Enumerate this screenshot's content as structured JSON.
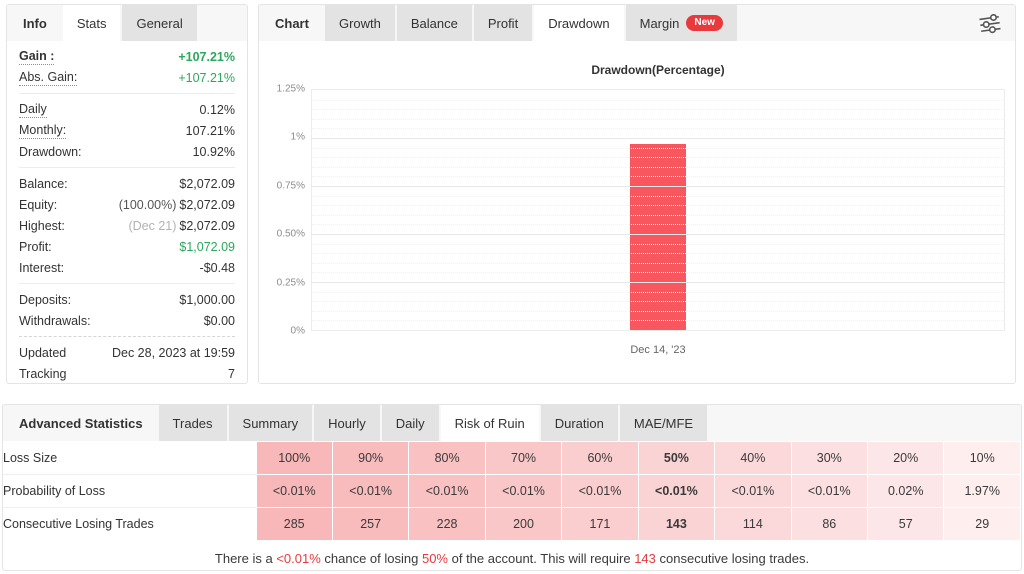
{
  "left_panel": {
    "tabs": [
      {
        "label": "Info",
        "style": "label"
      },
      {
        "label": "Stats",
        "style": "active"
      },
      {
        "label": "General",
        "style": "inactive"
      }
    ],
    "groups": [
      {
        "rows": [
          {
            "label": "Gain :",
            "underline": true,
            "bold": true,
            "value": "+107.21%",
            "value_color": "green",
            "value_bold": true
          },
          {
            "label": "Abs. Gain:",
            "underline": true,
            "value": "+107.21%",
            "value_color": "green"
          }
        ]
      },
      {
        "rows": [
          {
            "label": "Daily",
            "underline": true,
            "value": "0.12%"
          },
          {
            "label": "Monthly:",
            "underline": true,
            "value": "107.21%"
          },
          {
            "label": "Drawdown:",
            "value": "10.92%"
          }
        ]
      },
      {
        "rows": [
          {
            "label": "Balance:",
            "value": "$2,072.09"
          },
          {
            "label": "Equity:",
            "prefix": "(100.00%)",
            "value": "$2,072.09"
          },
          {
            "label": "Highest:",
            "prefix": "(Dec 21)",
            "prefix_muted": true,
            "value": "$2,072.09"
          },
          {
            "label": "Profit:",
            "value": "$1,072.09",
            "value_color": "green"
          },
          {
            "label": "Interest:",
            "value": "-$0.48"
          }
        ]
      },
      {
        "rows": [
          {
            "label": "Deposits:",
            "value": "$1,000.00"
          },
          {
            "label": "Withdrawals:",
            "value": "$0.00"
          }
        ]
      },
      {
        "dashed": true,
        "rows": [
          {
            "label": "Updated",
            "value": "Dec 28, 2023 at 19:59"
          },
          {
            "label": "Tracking",
            "value": "7"
          }
        ]
      }
    ]
  },
  "chart_panel": {
    "tabs": [
      {
        "label": "Chart",
        "style": "label"
      },
      {
        "label": "Growth",
        "style": "inactive"
      },
      {
        "label": "Balance",
        "style": "inactive"
      },
      {
        "label": "Profit",
        "style": "inactive"
      },
      {
        "label": "Drawdown",
        "style": "active"
      },
      {
        "label": "Margin",
        "style": "inactive",
        "badge": "New"
      }
    ],
    "settings_icon": "filter-sliders",
    "chart_data": {
      "type": "bar",
      "title": "Drawdown(Percentage)",
      "categories": [
        "Dec 14, '23"
      ],
      "values": [
        0.97
      ],
      "ylim": [
        0,
        1.25
      ],
      "yticks": [
        {
          "value": 1.25,
          "label": "1.25%"
        },
        {
          "value": 1.0,
          "label": "1%"
        },
        {
          "value": 0.75,
          "label": "0.75%"
        },
        {
          "value": 0.5,
          "label": "0.50%"
        },
        {
          "value": 0.25,
          "label": "0.25%"
        },
        {
          "value": 0,
          "label": "0%"
        }
      ],
      "bar_color": "#f8575f",
      "grid": true,
      "legend": "none"
    }
  },
  "bottom_panel": {
    "tabs": [
      {
        "label": "Advanced Statistics",
        "style": "label"
      },
      {
        "label": "Trades",
        "style": "inactive"
      },
      {
        "label": "Summary",
        "style": "inactive"
      },
      {
        "label": "Hourly",
        "style": "inactive"
      },
      {
        "label": "Daily",
        "style": "inactive"
      },
      {
        "label": "Risk of Ruin",
        "style": "active"
      },
      {
        "label": "Duration",
        "style": "inactive"
      },
      {
        "label": "MAE/MFE",
        "style": "inactive"
      }
    ],
    "table": {
      "bold_column": 5,
      "column_colors": [
        "#f8b7b8",
        "#f8bcbd",
        "#f9c1c2",
        "#f9c7c8",
        "#facdce",
        "#fad3d4",
        "#fbd9da",
        "#fcdfe0",
        "#fde6e7",
        "#feeeee"
      ],
      "rows": [
        {
          "label": "Loss Size",
          "cells": [
            "100%",
            "90%",
            "80%",
            "70%",
            "60%",
            "50%",
            "40%",
            "30%",
            "20%",
            "10%"
          ]
        },
        {
          "label": "Probability of Loss",
          "cells": [
            "<0.01%",
            "<0.01%",
            "<0.01%",
            "<0.01%",
            "<0.01%",
            "<0.01%",
            "<0.01%",
            "<0.01%",
            "0.02%",
            "1.97%"
          ]
        },
        {
          "label": "Consecutive Losing Trades",
          "cells": [
            "285",
            "257",
            "228",
            "200",
            "171",
            "143",
            "114",
            "86",
            "57",
            "29"
          ]
        }
      ]
    },
    "summary": {
      "parts": [
        {
          "text": "There is a "
        },
        {
          "text": "<0.01%",
          "highlight": true
        },
        {
          "text": " chance of losing "
        },
        {
          "text": "50%",
          "highlight": true
        },
        {
          "text": " of the account. This will require "
        },
        {
          "text": "143",
          "highlight": true
        },
        {
          "text": " consecutive losing trades."
        }
      ]
    }
  },
  "colors": {
    "green": "#2aa85c",
    "red": "#e8393d",
    "bar": "#f8575f"
  }
}
